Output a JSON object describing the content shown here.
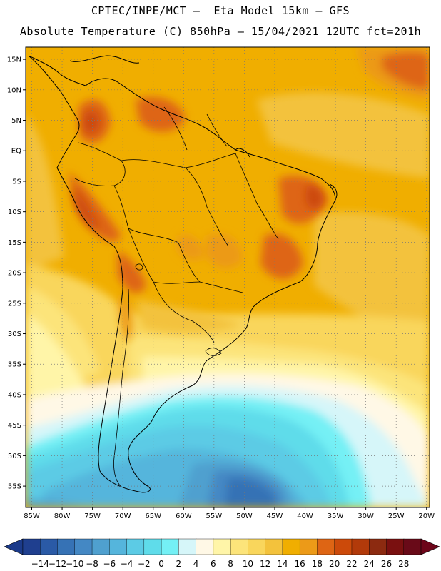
{
  "header": {
    "line1": "CPTEC/INPE/MCT –  Eta Model 15km – GFS",
    "line2": "Absolute Temperature (C) 850hPa – 15/04/2021 12UTC fct=201h"
  },
  "map": {
    "lon_range": [
      -86,
      -19.5
    ],
    "lat_range": [
      -58.5,
      17
    ],
    "lat_ticks": [
      {
        "value": 15,
        "label": "15N"
      },
      {
        "value": 10,
        "label": "10N"
      },
      {
        "value": 5,
        "label": "5N"
      },
      {
        "value": 0,
        "label": "EQ"
      },
      {
        "value": -5,
        "label": "5S"
      },
      {
        "value": -10,
        "label": "10S"
      },
      {
        "value": -15,
        "label": "15S"
      },
      {
        "value": -20,
        "label": "20S"
      },
      {
        "value": -25,
        "label": "25S"
      },
      {
        "value": -30,
        "label": "30S"
      },
      {
        "value": -35,
        "label": "35S"
      },
      {
        "value": -40,
        "label": "40S"
      },
      {
        "value": -45,
        "label": "45S"
      },
      {
        "value": -50,
        "label": "50S"
      },
      {
        "value": -55,
        "label": "55S"
      }
    ],
    "lon_ticks": [
      {
        "value": -85,
        "label": "85W"
      },
      {
        "value": -80,
        "label": "80W"
      },
      {
        "value": -75,
        "label": "75W"
      },
      {
        "value": -70,
        "label": "70W"
      },
      {
        "value": -65,
        "label": "65W"
      },
      {
        "value": -60,
        "label": "60W"
      },
      {
        "value": -55,
        "label": "55W"
      },
      {
        "value": -50,
        "label": "50W"
      },
      {
        "value": -45,
        "label": "45W"
      },
      {
        "value": -40,
        "label": "40W"
      },
      {
        "value": -35,
        "label": "35W"
      },
      {
        "value": -30,
        "label": "30W"
      },
      {
        "value": -25,
        "label": "25W"
      },
      {
        "value": -20,
        "label": "20W"
      }
    ],
    "gridlines": "dotted"
  },
  "colorbar": {
    "levels": [
      "-14",
      "-12",
      "-10",
      "-8",
      "-6",
      "-4",
      "-2",
      "0",
      "2",
      "4",
      "6",
      "8",
      "10",
      "12",
      "14",
      "16",
      "18",
      "20",
      "22",
      "24",
      "26",
      "28"
    ],
    "colors": [
      "#1f3f8f",
      "#2a5aa6",
      "#3672b5",
      "#4488c4",
      "#4fa0cf",
      "#55b5dc",
      "#5ccbe5",
      "#5fdcea",
      "#74f0f5",
      "#d6f6f9",
      "#fff8e6",
      "#fff5a8",
      "#fce47a",
      "#f9d65c",
      "#f3c23c",
      "#f0ae00",
      "#ec9a18",
      "#de6514",
      "#cc4a0a",
      "#b23a0a",
      "#8c2a10",
      "#7a1010",
      "#690a18"
    ],
    "under_color": "#1b3a8a",
    "over_color": "#6d0519"
  }
}
